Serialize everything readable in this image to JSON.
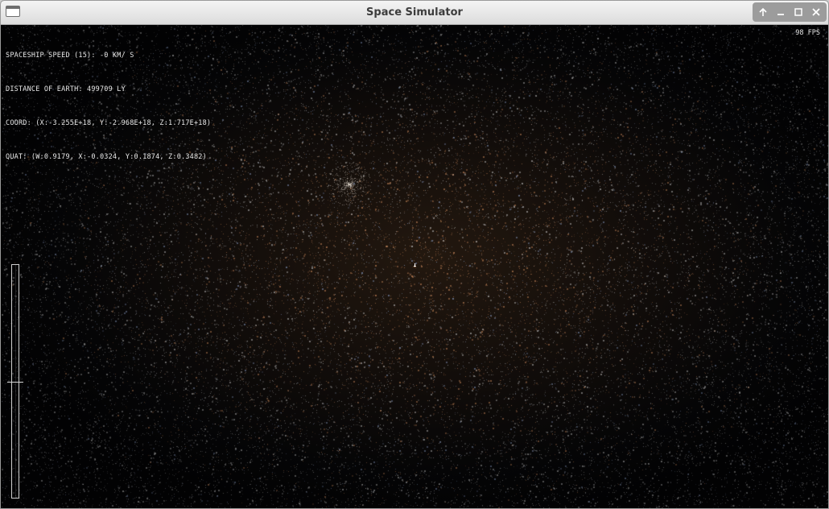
{
  "window": {
    "title": "Space Simulator",
    "controls": [
      {
        "name": "shade",
        "icon": "arrow-up-icon"
      },
      {
        "name": "minimize",
        "icon": "minimize-icon"
      },
      {
        "name": "maximize",
        "icon": "maximize-icon"
      },
      {
        "name": "close",
        "icon": "close-icon"
      }
    ]
  },
  "hud": {
    "speed": "SPACESHIP SPEED (15): -0 KM/ S",
    "distance": "DISTANCE OF EARTH: 499709 LY",
    "coord": "COORD: (X:-3.255E+18, Y:-2.968E+18, Z:1.717E+18)",
    "quat": "QUAT: (W:0.9179, X:-0.0324, Y:0.1874, Z:0.3482)",
    "fps": "98 FPS"
  },
  "throttle": {
    "level": 0.5
  },
  "colors": {
    "hud_text": "#e8e8e8",
    "star_warm": "#c9875a",
    "star_cool": "#8fa3c9",
    "star_white": "#dcdcdc"
  }
}
